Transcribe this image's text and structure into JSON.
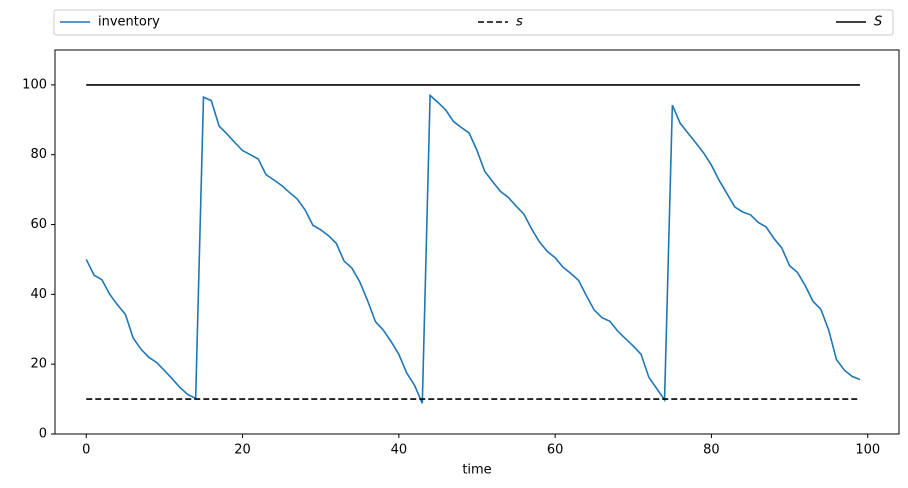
{
  "chart_data": {
    "type": "line",
    "xlabel": "time",
    "x": [
      0,
      1,
      2,
      3,
      4,
      5,
      6,
      7,
      8,
      9,
      10,
      11,
      12,
      13,
      14,
      15,
      16,
      17,
      18,
      19,
      20,
      21,
      22,
      23,
      24,
      25,
      26,
      27,
      28,
      29,
      30,
      31,
      32,
      33,
      34,
      35,
      36,
      37,
      38,
      39,
      40,
      41,
      42,
      43,
      44,
      45,
      46,
      47,
      48,
      49,
      50,
      51,
      52,
      53,
      54,
      55,
      56,
      57,
      58,
      59,
      60,
      61,
      62,
      63,
      64,
      65,
      66,
      67,
      68,
      69,
      70,
      71,
      72,
      73,
      74,
      75,
      76,
      77,
      78,
      79,
      80,
      81,
      82,
      83,
      84,
      85,
      86,
      87,
      88,
      89,
      90,
      91,
      92,
      93,
      94,
      95,
      96,
      97,
      98,
      99
    ],
    "series": [
      {
        "name": "inventory",
        "color": "#1f77b4",
        "linestyle": "solid",
        "values": [
          50,
          45.5,
          44.2,
          40,
          37,
          34.3,
          27.5,
          24.3,
          22,
          20.5,
          18.2,
          15.8,
          13.3,
          11.3,
          10.2,
          96.5,
          95.5,
          88.2,
          86,
          83.5,
          81.2,
          80,
          78.8,
          74.3,
          72.8,
          71.2,
          69.2,
          67.3,
          64.2,
          59.8,
          58.5,
          56.8,
          54.6,
          49.5,
          47.5,
          43.6,
          38.2,
          32.2,
          29.8,
          26.5,
          22.8,
          17.5,
          14,
          8.8,
          97,
          95,
          92.8,
          89.5,
          87.8,
          86.2,
          81.2,
          75.2,
          72.3,
          69.5,
          67.8,
          65.3,
          63,
          58.7,
          55,
          52.3,
          50.5,
          47.8,
          46,
          44,
          39.6,
          35.5,
          33.3,
          32.3,
          29.5,
          27.3,
          25.2,
          22.8,
          16.2,
          13,
          9.8,
          94.2,
          89,
          86.2,
          83.4,
          80.5,
          77,
          72.6,
          68.8,
          65,
          63.6,
          62.8,
          60.6,
          59.3,
          56,
          53.3,
          48.2,
          46.3,
          42.5,
          38,
          35.7,
          29.8,
          21.3,
          18.3,
          16.5,
          15.6
        ]
      },
      {
        "name": "s",
        "color": "#000000",
        "linestyle": "dashed",
        "values": [
          10,
          10,
          10,
          10,
          10,
          10,
          10,
          10,
          10,
          10,
          10,
          10,
          10,
          10,
          10,
          10,
          10,
          10,
          10,
          10,
          10,
          10,
          10,
          10,
          10,
          10,
          10,
          10,
          10,
          10,
          10,
          10,
          10,
          10,
          10,
          10,
          10,
          10,
          10,
          10,
          10,
          10,
          10,
          10,
          10,
          10,
          10,
          10,
          10,
          10,
          10,
          10,
          10,
          10,
          10,
          10,
          10,
          10,
          10,
          10,
          10,
          10,
          10,
          10,
          10,
          10,
          10,
          10,
          10,
          10,
          10,
          10,
          10,
          10,
          10,
          10,
          10,
          10,
          10,
          10,
          10,
          10,
          10,
          10,
          10,
          10,
          10,
          10,
          10,
          10,
          10,
          10,
          10,
          10,
          10,
          10,
          10,
          10,
          10,
          10
        ]
      },
      {
        "name": "S",
        "color": "#000000",
        "linestyle": "solid",
        "values": [
          100,
          100,
          100,
          100,
          100,
          100,
          100,
          100,
          100,
          100,
          100,
          100,
          100,
          100,
          100,
          100,
          100,
          100,
          100,
          100,
          100,
          100,
          100,
          100,
          100,
          100,
          100,
          100,
          100,
          100,
          100,
          100,
          100,
          100,
          100,
          100,
          100,
          100,
          100,
          100,
          100,
          100,
          100,
          100,
          100,
          100,
          100,
          100,
          100,
          100,
          100,
          100,
          100,
          100,
          100,
          100,
          100,
          100,
          100,
          100,
          100,
          100,
          100,
          100,
          100,
          100,
          100,
          100,
          100,
          100,
          100,
          100,
          100,
          100,
          100,
          100,
          100,
          100,
          100,
          100,
          100,
          100,
          100,
          100,
          100,
          100,
          100,
          100,
          100,
          100,
          100,
          100,
          100,
          100,
          100,
          100,
          100,
          100,
          100,
          100
        ]
      }
    ],
    "xlim": [
      -4,
      104
    ],
    "ylim": [
      0,
      110
    ],
    "xticks": [
      0,
      20,
      40,
      60,
      80,
      100
    ],
    "yticks": [
      0,
      20,
      40,
      60,
      80,
      100
    ],
    "legend": "top-expand"
  }
}
